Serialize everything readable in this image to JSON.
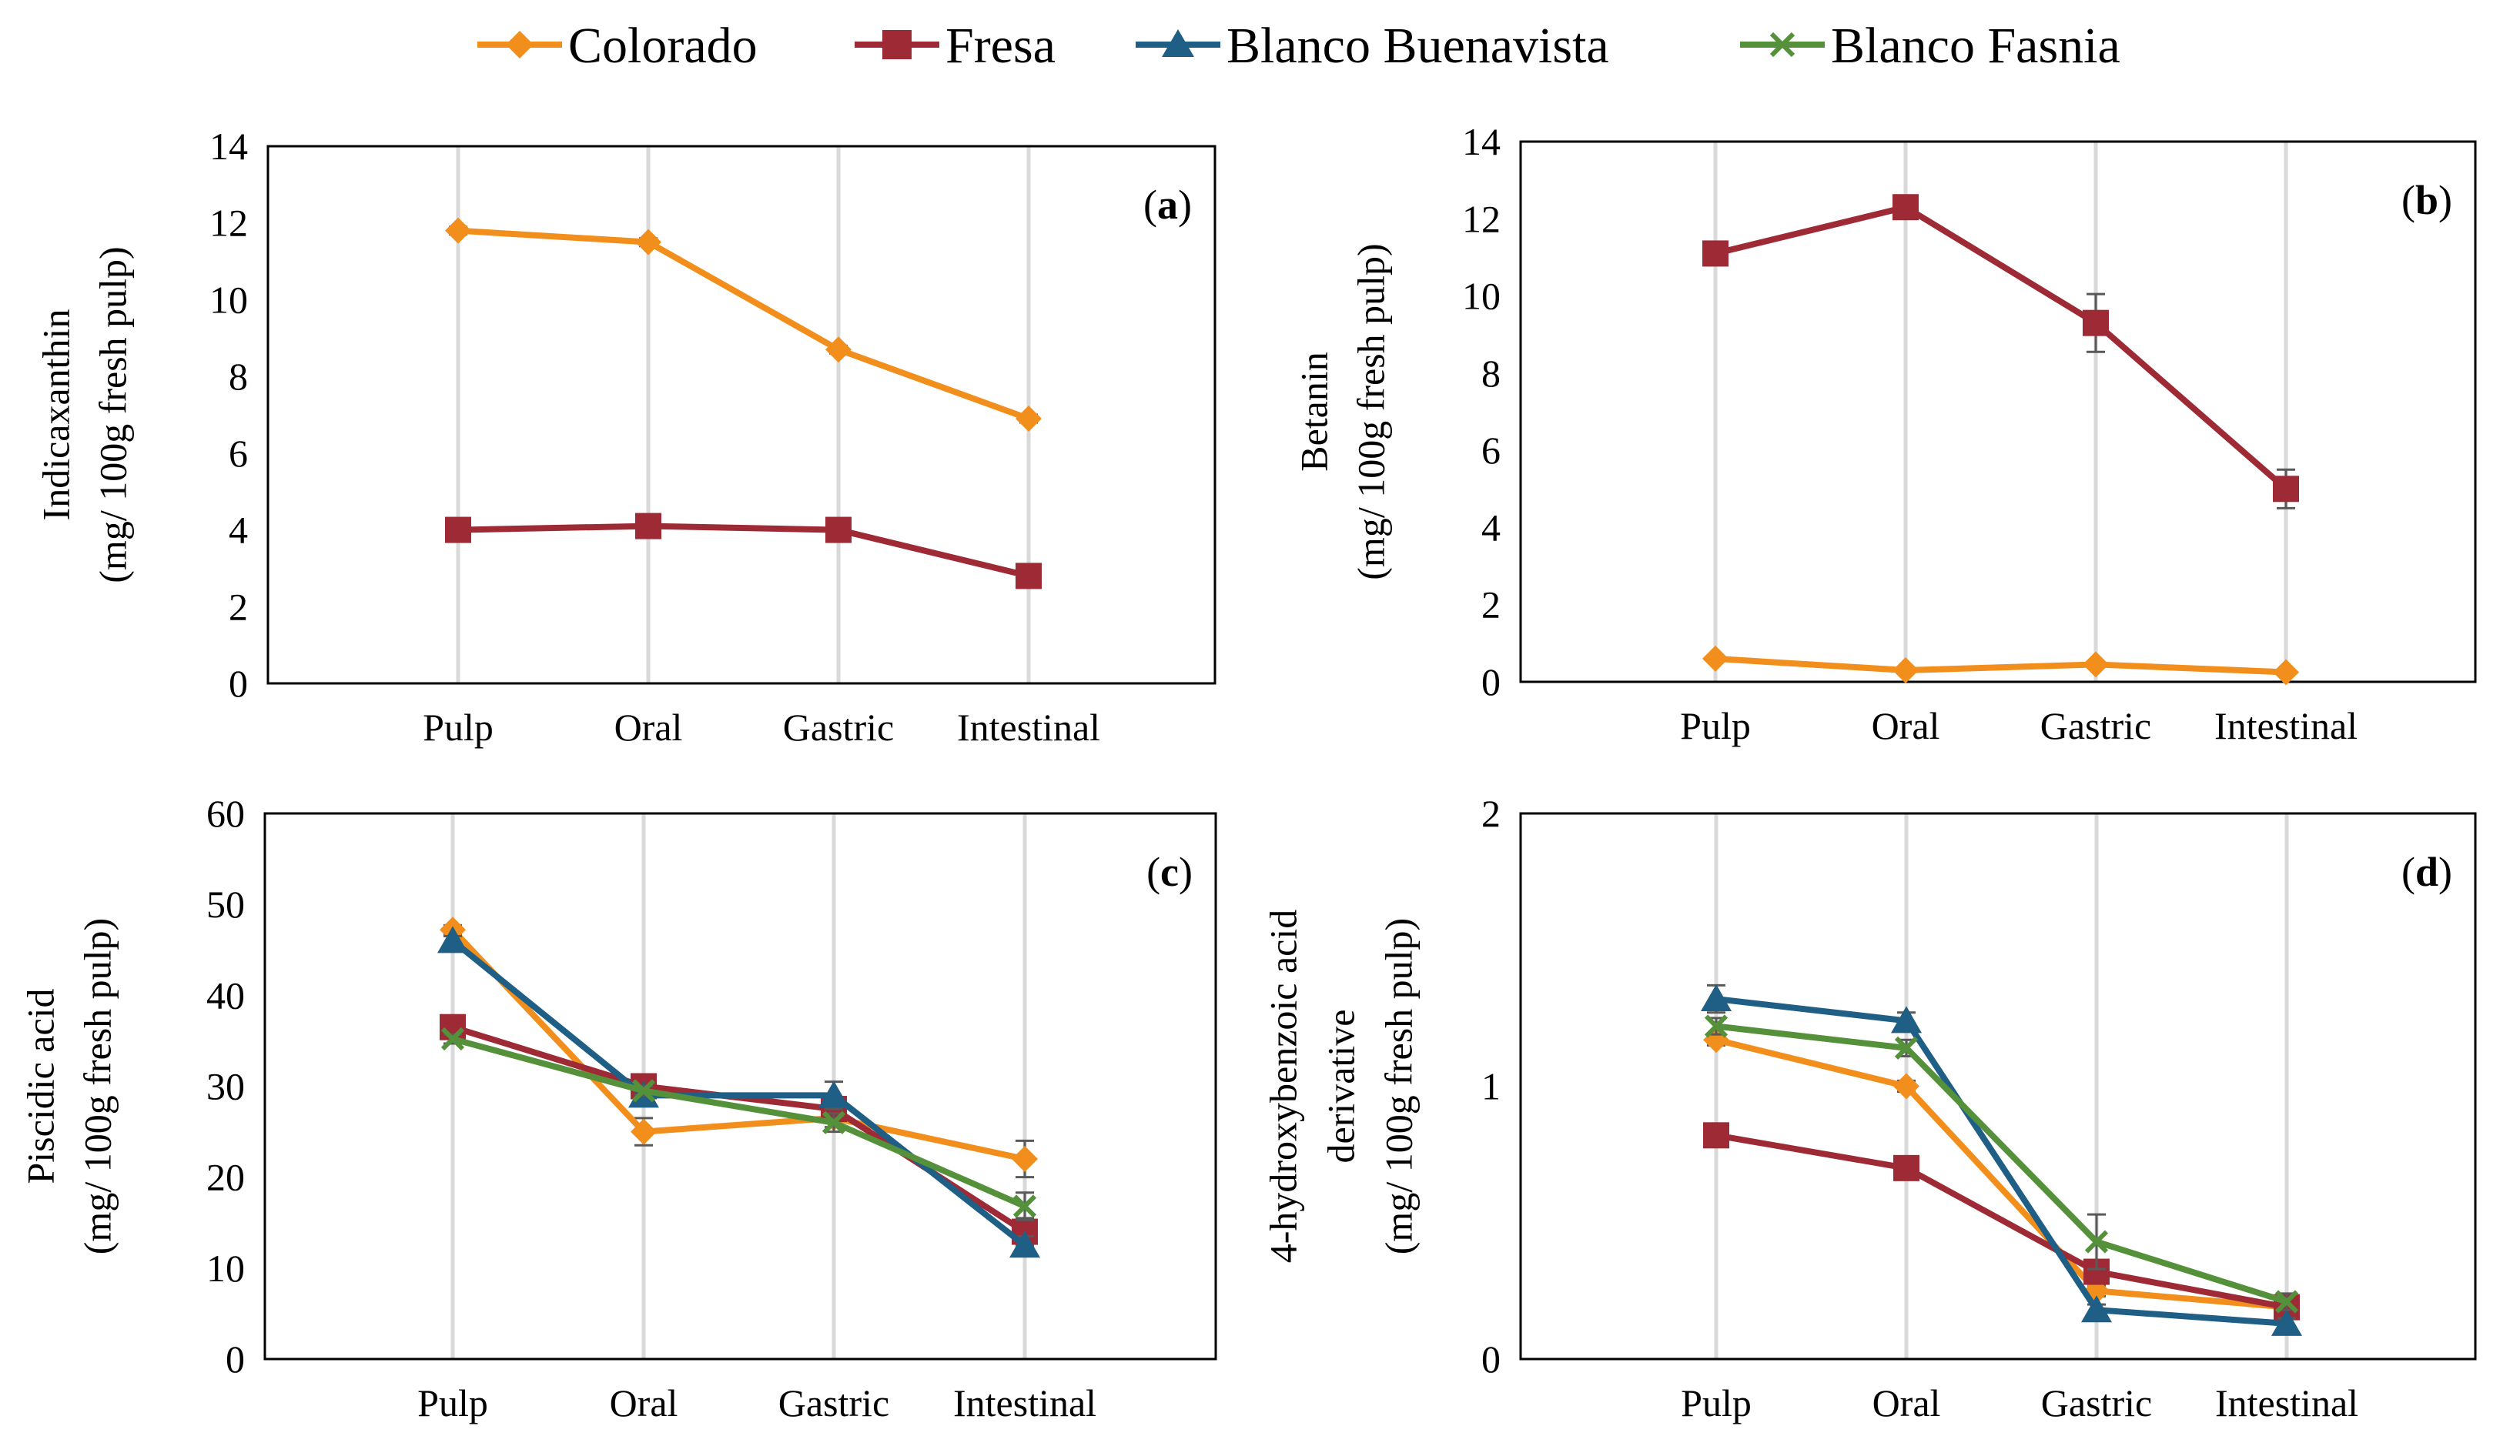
{
  "legend": [
    {
      "name": "Colorado",
      "color": "#f28e1b",
      "marker": "diamond"
    },
    {
      "name": "Fresa",
      "color": "#9e2a36",
      "marker": "square"
    },
    {
      "name": "Blanco Buenavista",
      "color": "#1f5f86",
      "marker": "triangle"
    },
    {
      "name": "Blanco Fasnia",
      "color": "#55913a",
      "marker": "x"
    }
  ],
  "chart_data": [
    {
      "type": "line",
      "panel_label": "(a)",
      "ylabel_lines": [
        "Indicaxanthin",
        "(mg/ 100g fresh pulp)"
      ],
      "categories": [
        "Pulp",
        "Oral",
        "Gastric",
        "Intestinal"
      ],
      "ylim": [
        0,
        14
      ],
      "yticks": [
        0,
        2,
        4,
        6,
        8,
        10,
        12,
        14
      ],
      "series": [
        {
          "name": "Colorado",
          "values": [
            11.8,
            11.5,
            8.7,
            6.9
          ],
          "errors": [
            0.1,
            0.1,
            0.1,
            0.1
          ]
        },
        {
          "name": "Fresa",
          "values": [
            4.0,
            4.1,
            4.0,
            2.8
          ],
          "errors": [
            0.1,
            0.1,
            0.1,
            0.1
          ]
        }
      ]
    },
    {
      "type": "line",
      "panel_label": "(b)",
      "ylabel_lines": [
        "Betanin",
        "(mg/ 100g fresh pulp)"
      ],
      "categories": [
        "Pulp",
        "Oral",
        "Gastric",
        "Intestinal"
      ],
      "ylim": [
        0,
        14
      ],
      "yticks": [
        0,
        2,
        4,
        6,
        8,
        10,
        12,
        14
      ],
      "series": [
        {
          "name": "Colorado",
          "values": [
            0.6,
            0.3,
            0.45,
            0.25
          ],
          "errors": [
            0.05,
            0.05,
            0.05,
            0.05
          ]
        },
        {
          "name": "Fresa",
          "values": [
            11.1,
            12.3,
            9.3,
            5.0
          ],
          "errors": [
            0.15,
            0.15,
            0.75,
            0.5
          ]
        }
      ]
    },
    {
      "type": "line",
      "panel_label": "(c)",
      "ylabel_lines": [
        "Piscidic acid",
        "(mg/ 100g fresh pulp)"
      ],
      "categories": [
        "Pulp",
        "Oral",
        "Gastric",
        "Intestinal"
      ],
      "ylim": [
        0,
        60
      ],
      "yticks": [
        0,
        10,
        20,
        30,
        40,
        50,
        60
      ],
      "series": [
        {
          "name": "Colorado",
          "values": [
            47.2,
            25.0,
            26.5,
            22.0
          ],
          "errors": [
            0.5,
            1.5,
            1.0,
            2.0
          ]
        },
        {
          "name": "Fresa",
          "values": [
            36.5,
            30.0,
            27.5,
            14.0
          ],
          "errors": [
            0.5,
            0.5,
            1.0,
            1.5
          ]
        },
        {
          "name": "Blanco Buenavista",
          "values": [
            46.0,
            29.0,
            29.0,
            12.5
          ],
          "errors": [
            0.5,
            1.0,
            1.5,
            1.0
          ]
        },
        {
          "name": "Blanco Fasnia",
          "values": [
            35.2,
            29.5,
            26.0,
            16.8
          ],
          "errors": [
            0.5,
            0.5,
            1.0,
            1.5
          ]
        }
      ]
    },
    {
      "type": "line",
      "panel_label": "(d)",
      "ylabel_lines": [
        "4-hydroxybenzoic acid",
        "derivative",
        "(mg/ 100g fresh pulp)"
      ],
      "categories": [
        "Pulp",
        "Oral",
        "Gastric",
        "Intestinal"
      ],
      "ylim": [
        0,
        2
      ],
      "yticks": [
        0,
        1,
        2
      ],
      "series": [
        {
          "name": "Colorado",
          "values": [
            1.17,
            1.0,
            0.25,
            0.19
          ],
          "errors": [
            0.02,
            0.02,
            0.02,
            0.02
          ]
        },
        {
          "name": "Fresa",
          "values": [
            0.82,
            0.7,
            0.32,
            0.19
          ],
          "errors": [
            0.02,
            0.02,
            0.03,
            0.02
          ]
        },
        {
          "name": "Blanco Buenavista",
          "values": [
            1.32,
            1.24,
            0.18,
            0.13
          ],
          "errors": [
            0.05,
            0.03,
            0.02,
            0.02
          ]
        },
        {
          "name": "Blanco Fasnia",
          "values": [
            1.22,
            1.14,
            0.43,
            0.21
          ],
          "errors": [
            0.03,
            0.03,
            0.1,
            0.03
          ]
        }
      ]
    }
  ]
}
